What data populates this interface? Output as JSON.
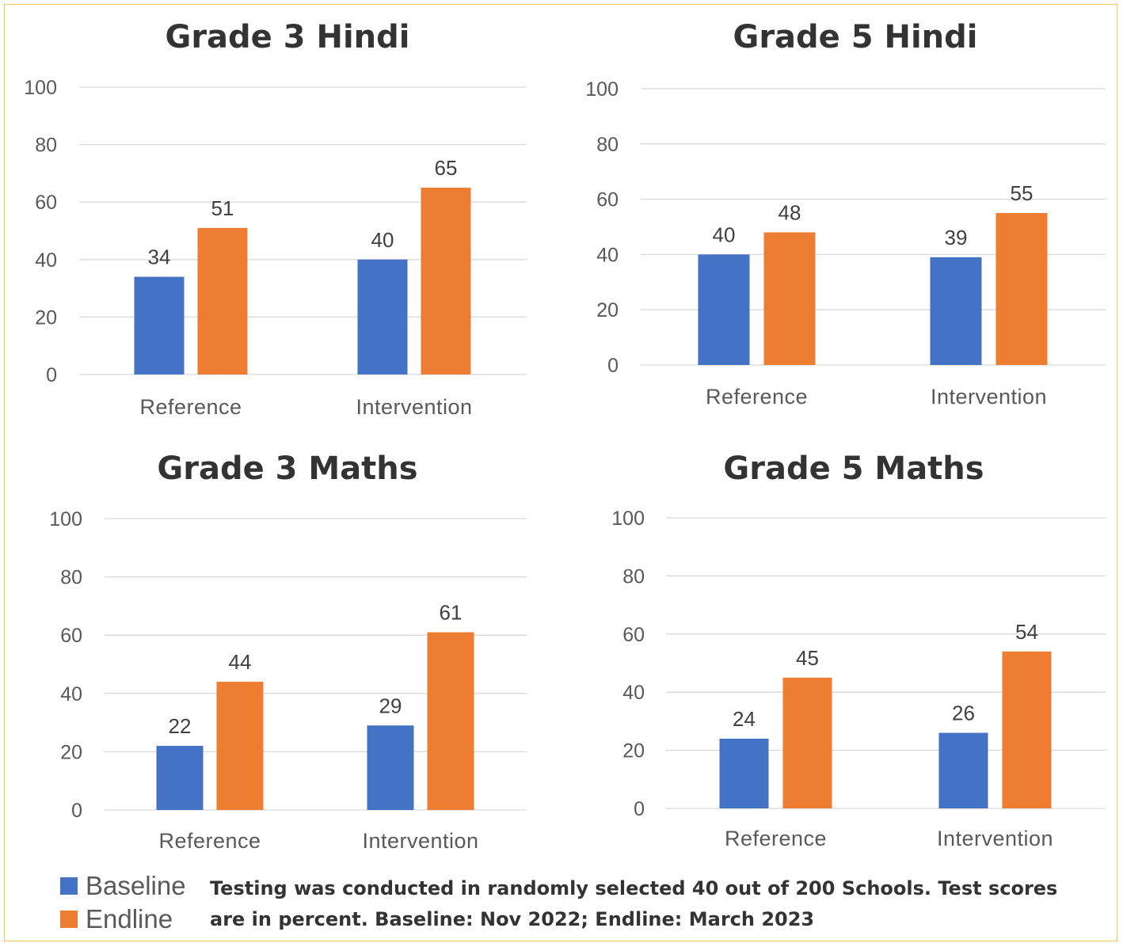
{
  "colors": {
    "baseline": "#4472c4",
    "endline": "#ed7d31",
    "grid": "#d9d9d9",
    "frame": "#f2c94c"
  },
  "chart_data": [
    {
      "type": "bar",
      "title": "Grade 3 Hindi",
      "categories": [
        "Reference",
        "Intervention"
      ],
      "series": [
        {
          "name": "Baseline",
          "values": [
            34,
            40
          ]
        },
        {
          "name": "Endline",
          "values": [
            51,
            65
          ]
        }
      ],
      "yticks": [
        "0",
        "20",
        "40",
        "60",
        "80",
        "100"
      ],
      "ylim": [
        0,
        100
      ],
      "grid": true,
      "legend": "bottom-left"
    },
    {
      "type": "bar",
      "title": "Grade 5 Hindi",
      "categories": [
        "Reference",
        "Intervention"
      ],
      "series": [
        {
          "name": "Baseline",
          "values": [
            40,
            39
          ]
        },
        {
          "name": "Endline",
          "values": [
            48,
            55
          ]
        }
      ],
      "yticks": [
        "0",
        "20",
        "40",
        "60",
        "80",
        "100"
      ],
      "ylim": [
        0,
        100
      ],
      "grid": true,
      "legend": "bottom-left"
    },
    {
      "type": "bar",
      "title": "Grade 3 Maths",
      "categories": [
        "Reference",
        "Intervention"
      ],
      "series": [
        {
          "name": "Baseline",
          "values": [
            22,
            29
          ]
        },
        {
          "name": "Endline",
          "values": [
            44,
            61
          ]
        }
      ],
      "yticks": [
        "0",
        "20",
        "40",
        "60",
        "80",
        "100"
      ],
      "ylim": [
        0,
        100
      ],
      "grid": true,
      "legend": "bottom-left"
    },
    {
      "type": "bar",
      "title": "Grade 5 Maths",
      "categories": [
        "Reference",
        "Intervention"
      ],
      "series": [
        {
          "name": "Baseline",
          "values": [
            24,
            26
          ]
        },
        {
          "name": "Endline",
          "values": [
            45,
            54
          ]
        }
      ],
      "yticks": [
        "0",
        "20",
        "40",
        "60",
        "80",
        "100"
      ],
      "ylim": [
        0,
        100
      ],
      "grid": true,
      "legend": "bottom-left"
    }
  ],
  "legend": {
    "baseline_label": "Baseline",
    "endline_label": "Endline"
  },
  "footnote": {
    "line1": "Testing was conducted in randomly selected 40 out of 200 Schools. Test scores",
    "line2": "are in percent. Baseline: Nov 2022; Endline: March 2023"
  }
}
